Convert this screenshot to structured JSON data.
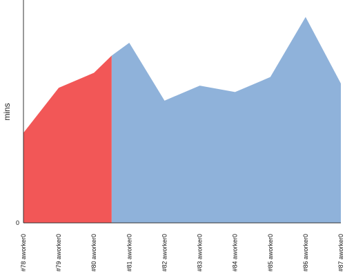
{
  "chart_data": {
    "type": "area",
    "categories": [
      "#78 aworker0",
      "#79 aworker0",
      "#80 aworker0",
      "#81 aworker0",
      "#82 aworker0",
      "#83 aworker0",
      "#84 aworker0",
      "#85 aworker0",
      "#86 aworker0",
      "#87 aworker0"
    ],
    "series": [
      {
        "values": [
          0.42,
          0.63,
          0.7,
          0.78,
          0.84,
          0.57,
          0.64,
          0.61,
          0.68,
          0.96,
          0.65
        ],
        "x": [
          0,
          1,
          2,
          2.5,
          3,
          4,
          5,
          6,
          7,
          8,
          9
        ],
        "color": "#8fb2da",
        "highlight_color": "#f25757",
        "highlight_until_x": 2.5
      }
    ],
    "ylabel": "mins",
    "yticks": [
      "0"
    ],
    "ylim": [
      0,
      1.02
    ],
    "grid": false,
    "legend": "none"
  }
}
